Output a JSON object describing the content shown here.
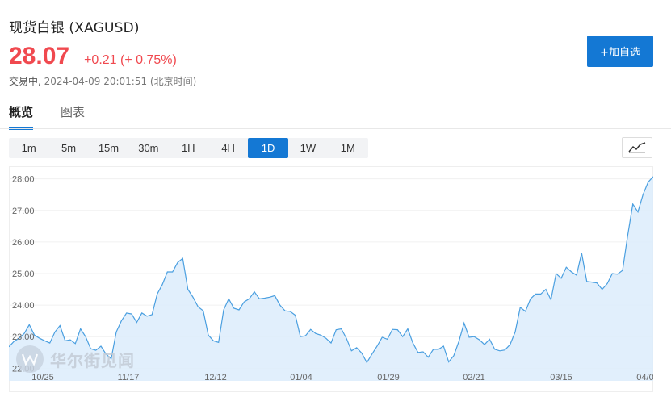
{
  "header": {
    "title": "现货白银 (XAGUSD)",
    "price": "28.07",
    "change": "+0.21 (+ 0.75%)",
    "status": "交易中,",
    "timestamp": "2024-04-09 20:01:51 (北京时间)",
    "add_button": "+加自选"
  },
  "tabs": [
    {
      "label": "概览",
      "active": true
    },
    {
      "label": "图表",
      "active": false
    }
  ],
  "intervals": [
    "1m",
    "5m",
    "15m",
    "30m",
    "1H",
    "4H",
    "1D",
    "1W",
    "1M"
  ],
  "active_interval": "1D",
  "watermark": {
    "text": "华尔街见闻"
  },
  "colors": {
    "accent": "#1478d4",
    "up": "#f0494f",
    "line": "#4a9fe0",
    "fill": "#dcecfb"
  },
  "chart_data": {
    "type": "area",
    "ylim": [
      21.6,
      28.4
    ],
    "yticks": [
      "28.00",
      "27.00",
      "26.00",
      "25.00",
      "24.00",
      "23.00",
      "22.00"
    ],
    "xtick_labels": [
      "10/25",
      "11/17",
      "12/12",
      "01/04",
      "01/29",
      "02/21",
      "03/15",
      "04/0"
    ],
    "values": [
      22.68,
      22.85,
      22.95,
      23.1,
      23.38,
      23.05,
      22.95,
      22.87,
      22.8,
      23.15,
      23.35,
      22.87,
      22.9,
      22.78,
      23.25,
      23.0,
      22.62,
      22.57,
      22.7,
      22.45,
      22.3,
      23.15,
      23.5,
      23.75,
      23.72,
      23.45,
      23.75,
      23.65,
      23.7,
      24.35,
      24.65,
      25.05,
      25.05,
      25.35,
      25.48,
      24.5,
      24.25,
      23.95,
      23.82,
      23.05,
      22.87,
      22.82,
      23.85,
      24.2,
      23.9,
      23.85,
      24.1,
      24.2,
      24.42,
      24.2,
      24.22,
      24.25,
      24.3,
      24.0,
      23.82,
      23.8,
      23.68,
      23.0,
      23.03,
      23.23,
      23.1,
      23.05,
      22.95,
      22.8,
      23.22,
      23.25,
      22.95,
      22.55,
      22.65,
      22.48,
      22.18,
      22.45,
      22.7,
      22.98,
      22.92,
      23.23,
      23.22,
      23.0,
      23.25,
      22.8,
      22.5,
      22.52,
      22.35,
      22.6,
      22.6,
      22.7,
      22.2,
      22.4,
      22.85,
      23.43,
      22.98,
      23.0,
      22.9,
      22.75,
      22.92,
      22.6,
      22.55,
      22.58,
      22.75,
      23.15,
      23.93,
      23.8,
      24.2,
      24.35,
      24.35,
      24.5,
      24.17,
      25.0,
      24.85,
      25.2,
      25.05,
      24.95,
      25.65,
      24.75,
      24.73,
      24.7,
      24.5,
      24.68,
      25.0,
      24.98,
      25.1,
      26.2,
      27.2,
      26.95,
      27.5,
      27.9,
      28.07
    ]
  }
}
